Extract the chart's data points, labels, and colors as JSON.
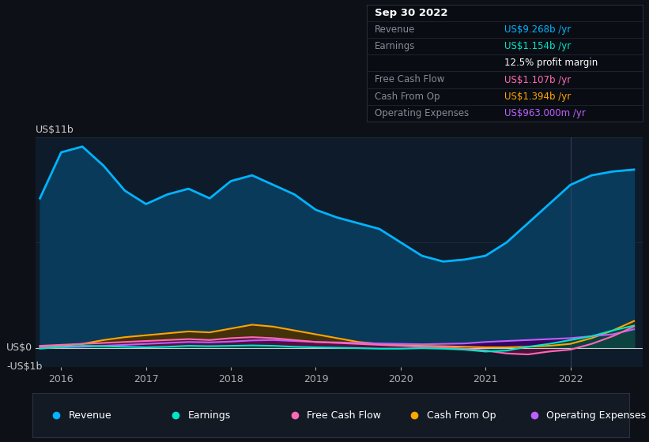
{
  "bg_color": "#0d1117",
  "plot_bg_color": "#0d1b2a",
  "grid_color": "#1e3050",
  "title_date": "Sep 30 2022",
  "tooltip": {
    "Revenue": {
      "value": "US$9.268b /yr",
      "color": "#00b4ff"
    },
    "Earnings": {
      "value": "US$1.154b /yr",
      "color": "#00e5c8"
    },
    "profit_margin": "12.5% profit margin",
    "Free Cash Flow": {
      "value": "US$1.107b /yr",
      "color": "#ff69b4"
    },
    "Cash From Op": {
      "value": "US$1.394b /yr",
      "color": "#ffa500"
    },
    "Operating Expenses": {
      "value": "US$963.000m /yr",
      "color": "#bf5fff"
    }
  },
  "ylabel_top": "US$11b",
  "ylabel_zero": "US$0",
  "ylabel_neg": "-US$1b",
  "x_ticks": [
    2016,
    2017,
    2018,
    2019,
    2020,
    2021,
    2022
  ],
  "ylim": [
    -1.0,
    11.0
  ],
  "xlim": [
    2015.7,
    2022.85
  ],
  "legend": [
    {
      "label": "Revenue",
      "color": "#00b4ff"
    },
    {
      "label": "Earnings",
      "color": "#00e5c8"
    },
    {
      "label": "Free Cash Flow",
      "color": "#ff69b4"
    },
    {
      "label": "Cash From Op",
      "color": "#ffa500"
    },
    {
      "label": "Operating Expenses",
      "color": "#bf5fff"
    }
  ],
  "revenue": {
    "x": [
      2015.75,
      2016.0,
      2016.25,
      2016.5,
      2016.75,
      2017.0,
      2017.25,
      2017.5,
      2017.75,
      2018.0,
      2018.25,
      2018.5,
      2018.75,
      2019.0,
      2019.25,
      2019.5,
      2019.75,
      2020.0,
      2020.25,
      2020.5,
      2020.75,
      2021.0,
      2021.25,
      2021.5,
      2021.75,
      2022.0,
      2022.25,
      2022.5,
      2022.75
    ],
    "y": [
      7.8,
      10.2,
      10.5,
      9.5,
      8.2,
      7.5,
      8.0,
      8.3,
      7.8,
      8.7,
      9.0,
      8.5,
      8.0,
      7.2,
      6.8,
      6.5,
      6.2,
      5.5,
      4.8,
      4.5,
      4.6,
      4.8,
      5.5,
      6.5,
      7.5,
      8.5,
      9.0,
      9.2,
      9.3
    ],
    "color": "#00b4ff",
    "fill_color": "#0a3a5a",
    "linewidth": 2.0
  },
  "earnings": {
    "x": [
      2015.75,
      2016.0,
      2016.25,
      2016.5,
      2016.75,
      2017.0,
      2017.25,
      2017.5,
      2017.75,
      2018.0,
      2018.25,
      2018.5,
      2018.75,
      2019.0,
      2019.25,
      2019.5,
      2019.75,
      2020.0,
      2020.25,
      2020.5,
      2020.75,
      2021.0,
      2021.25,
      2021.5,
      2021.75,
      2022.0,
      2022.25,
      2022.5,
      2022.75
    ],
    "y": [
      -0.05,
      0.05,
      0.1,
      0.08,
      0.05,
      0.02,
      0.05,
      0.1,
      0.08,
      0.1,
      0.12,
      0.1,
      0.05,
      0.02,
      0.0,
      -0.02,
      -0.05,
      -0.05,
      -0.02,
      -0.05,
      -0.1,
      -0.2,
      -0.15,
      0.05,
      0.2,
      0.4,
      0.6,
      0.9,
      1.154
    ],
    "color": "#00e5c8",
    "fill_color": "#004d40",
    "linewidth": 1.5
  },
  "free_cash_flow": {
    "x": [
      2015.75,
      2016.0,
      2016.25,
      2016.5,
      2016.75,
      2017.0,
      2017.25,
      2017.5,
      2017.75,
      2018.0,
      2018.25,
      2018.5,
      2018.75,
      2019.0,
      2019.25,
      2019.5,
      2019.75,
      2020.0,
      2020.25,
      2020.5,
      2020.75,
      2021.0,
      2021.25,
      2021.5,
      2021.75,
      2022.0,
      2022.25,
      2022.5,
      2022.75
    ],
    "y": [
      0.1,
      0.15,
      0.2,
      0.25,
      0.3,
      0.35,
      0.4,
      0.45,
      0.4,
      0.5,
      0.55,
      0.5,
      0.4,
      0.3,
      0.25,
      0.2,
      0.15,
      0.1,
      0.05,
      0.02,
      -0.05,
      -0.15,
      -0.3,
      -0.35,
      -0.2,
      -0.1,
      0.2,
      0.6,
      1.107
    ],
    "color": "#ff69b4",
    "fill_color": "#5a1040",
    "linewidth": 1.5
  },
  "cash_from_op": {
    "x": [
      2015.75,
      2016.0,
      2016.25,
      2016.5,
      2016.75,
      2017.0,
      2017.25,
      2017.5,
      2017.75,
      2018.0,
      2018.25,
      2018.5,
      2018.75,
      2019.0,
      2019.25,
      2019.5,
      2019.75,
      2020.0,
      2020.25,
      2020.5,
      2020.75,
      2021.0,
      2021.25,
      2021.5,
      2021.75,
      2022.0,
      2022.25,
      2022.5,
      2022.75
    ],
    "y": [
      0.05,
      0.1,
      0.2,
      0.4,
      0.55,
      0.65,
      0.75,
      0.85,
      0.8,
      1.0,
      1.2,
      1.1,
      0.9,
      0.7,
      0.5,
      0.3,
      0.2,
      0.15,
      0.1,
      0.08,
      0.05,
      0.02,
      0.02,
      0.05,
      0.1,
      0.2,
      0.5,
      0.9,
      1.394
    ],
    "color": "#ffa500",
    "fill_color": "#4a3000",
    "linewidth": 1.5
  },
  "op_expenses": {
    "x": [
      2015.75,
      2016.0,
      2016.25,
      2016.5,
      2016.75,
      2017.0,
      2017.25,
      2017.5,
      2017.75,
      2018.0,
      2018.25,
      2018.5,
      2018.75,
      2019.0,
      2019.25,
      2019.5,
      2019.75,
      2020.0,
      2020.25,
      2020.5,
      2020.75,
      2021.0,
      2021.25,
      2021.5,
      2021.75,
      2022.0,
      2022.25,
      2022.5,
      2022.75
    ],
    "y": [
      0.0,
      0.02,
      0.05,
      0.1,
      0.15,
      0.2,
      0.25,
      0.3,
      0.28,
      0.32,
      0.38,
      0.4,
      0.35,
      0.3,
      0.28,
      0.25,
      0.22,
      0.2,
      0.18,
      0.2,
      0.22,
      0.3,
      0.35,
      0.4,
      0.45,
      0.5,
      0.6,
      0.7,
      0.963
    ],
    "color": "#bf5fff",
    "fill_color": "#3a0060",
    "linewidth": 1.5
  },
  "vertical_line_x": 2022.0,
  "vertical_line_color": "#444466"
}
